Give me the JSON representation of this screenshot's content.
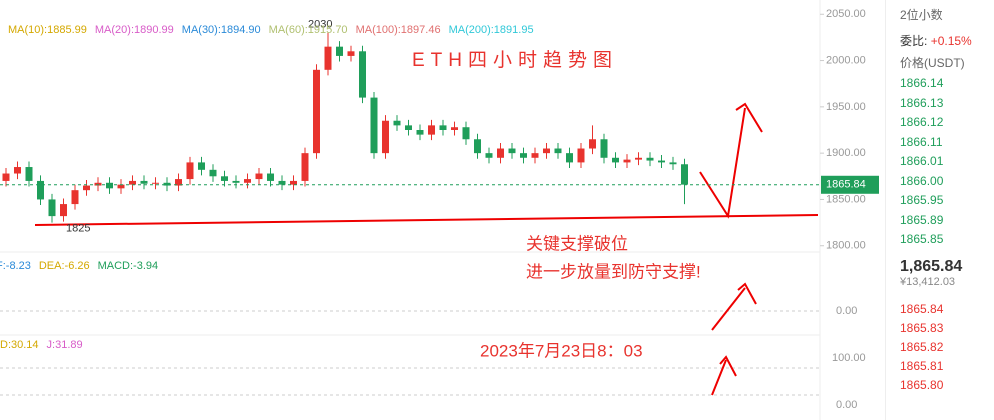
{
  "chart_data": {
    "type": "candlestick",
    "title": "ETH四小时趋势图",
    "ma_labels": [
      {
        "text": "MA(10):1885.99",
        "color": "#d4a800"
      },
      {
        "text": "MA(20):1890.99",
        "color": "#d85cc8"
      },
      {
        "text": "MA(30):1894.90",
        "color": "#2a8ad8"
      },
      {
        "text": "MA(60):1915.70",
        "color": "#b0c070"
      },
      {
        "text": "MA(100):1897.46",
        "color": "#e07070"
      },
      {
        "text": "MA(200):1891.95",
        "color": "#30c8d8"
      }
    ],
    "open": [
      1870,
      1878,
      1885,
      1870,
      1850,
      1832,
      1845,
      1860,
      1865,
      1868,
      1862,
      1866,
      1870,
      1867,
      1868,
      1865,
      1872,
      1890,
      1882,
      1875,
      1870,
      1868,
      1872,
      1878,
      1870,
      1866,
      1870,
      1900,
      1990,
      2015,
      2005,
      2010,
      1960,
      1900,
      1935,
      1930,
      1925,
      1920,
      1930,
      1925,
      1928,
      1915,
      1900,
      1895,
      1905,
      1900,
      1895,
      1900,
      1905,
      1900,
      1890,
      1905,
      1915,
      1895,
      1890,
      1893,
      1895,
      1892,
      1890,
      1888
    ],
    "high": [
      1884,
      1891,
      1891,
      1876,
      1856,
      1851,
      1866,
      1871,
      1874,
      1874,
      1872,
      1876,
      1876,
      1874,
      1874,
      1878,
      1896,
      1896,
      1888,
      1881,
      1876,
      1878,
      1884,
      1884,
      1876,
      1876,
      1906,
      1996,
      2030,
      2021,
      2016,
      2016,
      1966,
      1941,
      1941,
      1936,
      1931,
      1936,
      1936,
      1934,
      1934,
      1921,
      1906,
      1911,
      1911,
      1906,
      1906,
      1911,
      1911,
      1906,
      1911,
      1930,
      1921,
      1901,
      1899,
      1901,
      1901,
      1898,
      1896,
      1894
    ],
    "low": [
      1864,
      1872,
      1864,
      1844,
      1825,
      1826,
      1839,
      1854,
      1859,
      1856,
      1856,
      1860,
      1861,
      1861,
      1859,
      1859,
      1866,
      1876,
      1869,
      1864,
      1862,
      1862,
      1866,
      1864,
      1860,
      1860,
      1864,
      1894,
      1984,
      1999,
      1999,
      1954,
      1894,
      1894,
      1924,
      1919,
      1914,
      1914,
      1919,
      1919,
      1909,
      1894,
      1889,
      1889,
      1894,
      1889,
      1889,
      1894,
      1894,
      1884,
      1884,
      1899,
      1889,
      1884,
      1884,
      1887,
      1886,
      1884,
      1882,
      1845
    ],
    "close": [
      1878,
      1885,
      1870,
      1850,
      1832,
      1845,
      1860,
      1865,
      1868,
      1862,
      1866,
      1870,
      1867,
      1868,
      1865,
      1872,
      1890,
      1882,
      1875,
      1870,
      1868,
      1872,
      1878,
      1870,
      1866,
      1870,
      1900,
      1990,
      2015,
      2005,
      2010,
      1960,
      1900,
      1935,
      1930,
      1925,
      1920,
      1930,
      1925,
      1928,
      1915,
      1900,
      1895,
      1905,
      1900,
      1895,
      1900,
      1905,
      1900,
      1890,
      1905,
      1915,
      1895,
      1890,
      1893,
      1895,
      1892,
      1890,
      1888,
      1866
    ],
    "up_color": "#e8332e",
    "down_color": "#1f9e5a",
    "ylim": [
      1790,
      2060
    ],
    "yticks": [
      {
        "value": 2050,
        "label": "2050.00"
      },
      {
        "value": 2000,
        "label": "2000.00"
      },
      {
        "value": 1950,
        "label": "1950.00"
      },
      {
        "value": 1900,
        "label": "1900.00"
      },
      {
        "value": 1850,
        "label": "1850.00"
      },
      {
        "value": 1800,
        "label": "1800.00"
      }
    ],
    "current_price": 1865.84,
    "high_label": "2030",
    "low_label": "1825",
    "annotations": [
      "关键支撑破位",
      "进一步放量到防守支撑!",
      "2023年7月23日8：03"
    ],
    "macd_labels": [
      {
        "text": "F:-8.23",
        "color": "#2a8ad8"
      },
      {
        "text": "DEA:-6.26",
        "color": "#d4a800"
      },
      {
        "text": "MACD:-3.94",
        "color": "#1f9e5a"
      }
    ],
    "macd_ticks": [
      "0.00"
    ],
    "kdj_labels": [
      {
        "text": "D:30.14",
        "color": "#d4a800"
      },
      {
        "text": "J:31.89",
        "color": "#d85cc8"
      }
    ],
    "kdj_ticks": [
      "100.00",
      "0.00"
    ]
  },
  "order_book": {
    "decimals": "2位小数",
    "ratio_label": "委比:",
    "ratio": "+0.15%",
    "price_header": "价格(USDT)",
    "asks": [
      "1866.14",
      "1866.13",
      "1866.12",
      "1866.11",
      "1866.01",
      "1866.00",
      "1865.95",
      "1865.89",
      "1865.85"
    ],
    "last": "1,865.84",
    "last_cny": "¥13,412.03",
    "bids": [
      "1865.84",
      "1865.83",
      "1865.82",
      "1865.81",
      "1865.80"
    ]
  }
}
